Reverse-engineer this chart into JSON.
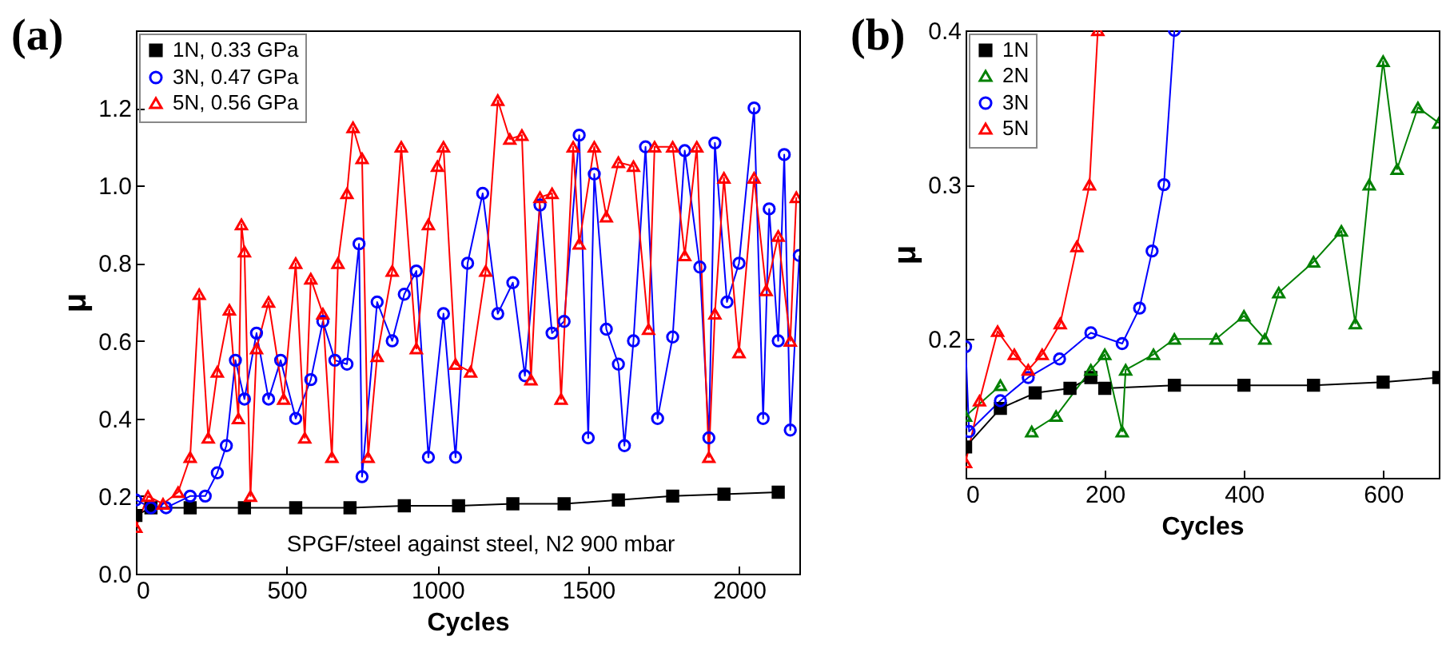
{
  "chart_data": [
    {
      "type": "line",
      "title": "(a)",
      "xlabel": "Cycles",
      "ylabel": "μ",
      "xlim": [
        0,
        2200
      ],
      "ylim": [
        0,
        1.4
      ],
      "xticks": [
        0,
        500,
        {
          "value": 1000,
          "label": "1000"
        },
        {
          "value": 1500,
          "label": "1500"
        },
        {
          "value": 2000,
          "label": "2000"
        }
      ],
      "yticks": [
        {
          "value": 0,
          "label": "0.0"
        },
        {
          "value": 0.2,
          "label": "0.2"
        },
        {
          "value": 0.4,
          "label": "0.4"
        },
        {
          "value": 0.6,
          "label": "0.6"
        },
        {
          "value": 0.8,
          "label": "0.8"
        },
        {
          "value": 1,
          "label": "1.0"
        },
        {
          "value": 1.2,
          "label": "1.2"
        }
      ],
      "grid": false,
      "legend": "top left",
      "annotations": [
        "SPGF/steel against steel, N2 900 mbar"
      ],
      "series": [
        {
          "name": "1N, 0.33 GPa",
          "color": "#000000",
          "marker": "square",
          "x": [
            0,
            50,
            180,
            360,
            530,
            710,
            890,
            1070,
            1250,
            1420,
            1600,
            1780,
            1950,
            2130
          ],
          "values": [
            0.15,
            0.17,
            0.17,
            0.17,
            0.17,
            0.17,
            0.175,
            0.175,
            0.18,
            0.18,
            0.19,
            0.2,
            0.205,
            0.21
          ]
        },
        {
          "name": "3N, 0.47 GPa",
          "color": "#0000ff",
          "marker": "circle",
          "x": [
            0,
            50,
            100,
            180,
            230,
            270,
            300,
            330,
            360,
            400,
            440,
            480,
            530,
            580,
            620,
            660,
            700,
            740,
            750,
            800,
            850,
            890,
            930,
            970,
            1020,
            1060,
            1100,
            1150,
            1200,
            1250,
            1290,
            1340,
            1380,
            1420,
            1470,
            1500,
            1520,
            1560,
            1600,
            1620,
            1650,
            1690,
            1730,
            1780,
            1820,
            1870,
            1900,
            1920,
            1960,
            2000,
            2050,
            2080,
            2100,
            2130,
            2150,
            2170,
            2200
          ],
          "values": [
            0.19,
            0.17,
            0.17,
            0.2,
            0.2,
            0.26,
            0.33,
            0.55,
            0.45,
            0.62,
            0.45,
            0.55,
            0.4,
            0.5,
            0.65,
            0.55,
            0.54,
            0.85,
            0.25,
            0.7,
            0.6,
            0.72,
            0.78,
            0.3,
            0.67,
            0.3,
            0.8,
            0.98,
            0.67,
            0.75,
            0.51,
            0.95,
            0.62,
            0.65,
            1.13,
            0.35,
            1.03,
            0.63,
            0.54,
            0.33,
            0.6,
            1.1,
            0.4,
            0.61,
            1.09,
            0.79,
            0.35,
            1.11,
            0.7,
            0.8,
            1.2,
            0.4,
            0.94,
            0.6,
            1.08,
            0.37,
            0.82
          ]
        },
        {
          "name": "5N, 0.56 GPa",
          "color": "#ff0000",
          "marker": "triangle",
          "x": [
            0,
            40,
            90,
            140,
            180,
            210,
            240,
            270,
            310,
            340,
            350,
            360,
            380,
            400,
            440,
            490,
            530,
            560,
            580,
            620,
            650,
            670,
            700,
            720,
            750,
            770,
            800,
            850,
            880,
            930,
            970,
            1000,
            1020,
            1060,
            1110,
            1160,
            1200,
            1240,
            1280,
            1310,
            1340,
            1380,
            1410,
            1450,
            1470,
            1520,
            1560,
            1600,
            1650,
            1700,
            1720,
            1780,
            1820,
            1860,
            1900,
            1920,
            1950,
            2000,
            2050,
            2090,
            2130,
            2170,
            2190
          ],
          "values": [
            0.12,
            0.2,
            0.18,
            0.21,
            0.3,
            0.72,
            0.35,
            0.52,
            0.68,
            0.4,
            0.9,
            0.83,
            0.2,
            0.58,
            0.7,
            0.45,
            0.8,
            0.35,
            0.76,
            0.67,
            0.3,
            0.8,
            0.98,
            1.15,
            1.07,
            0.3,
            0.56,
            0.78,
            1.1,
            0.58,
            0.9,
            1.05,
            1.1,
            0.54,
            0.52,
            0.78,
            1.22,
            1.12,
            1.13,
            0.5,
            0.97,
            0.98,
            0.45,
            1.1,
            0.85,
            1.1,
            0.92,
            1.06,
            1.05,
            0.63,
            1.1,
            1.1,
            0.82,
            1.1,
            0.3,
            0.67,
            1.02,
            0.57,
            1.02,
            0.73,
            0.87,
            0.6,
            0.97
          ]
        }
      ]
    },
    {
      "type": "line",
      "title": "(b)",
      "xlabel": "Cycles",
      "ylabel": "μ",
      "xlim": [
        0,
        680
      ],
      "ylim": [
        0.11,
        0.4
      ],
      "xticks": [
        0,
        200,
        400,
        600
      ],
      "yticks": [
        0.2,
        0.3,
        0.4
      ],
      "grid": false,
      "legend": "top left",
      "series": [
        {
          "name": "1N",
          "color": "#000000",
          "marker": "square",
          "x": [
            0,
            50,
            100,
            150,
            180,
            200,
            300,
            400,
            500,
            600,
            680
          ],
          "values": [
            0.13,
            0.155,
            0.165,
            0.168,
            0.175,
            0.168,
            0.17,
            0.17,
            0.17,
            0.172,
            0.175
          ]
        },
        {
          "name": "2N",
          "color": "#008000",
          "marker": "triangle",
          "x": [
            0,
            50,
            90,
            95,
            130,
            180,
            200,
            225,
            230,
            270,
            300,
            360,
            400,
            430,
            450,
            500,
            540,
            560,
            580,
            600,
            620,
            650,
            680
          ],
          "values": [
            0.15,
            0.17,
            null,
            0.14,
            0.15,
            0.18,
            0.19,
            0.14,
            0.18,
            0.19,
            0.2,
            0.2,
            0.215,
            0.2,
            0.23,
            0.25,
            0.27,
            0.21,
            0.3,
            0.38,
            0.31,
            0.35,
            0.34
          ]
        },
        {
          "name": "3N",
          "color": "#0000ff",
          "marker": "circle",
          "x": [
            0,
            5,
            50,
            90,
            135,
            180,
            225,
            250,
            268,
            285,
            300
          ],
          "values": [
            0.195,
            0.14,
            0.16,
            0.175,
            0.187,
            0.204,
            0.197,
            0.22,
            0.257,
            0.3,
            0.4
          ]
        },
        {
          "name": "5N",
          "color": "#ff0000",
          "marker": "triangle",
          "x": [
            0,
            20,
            46,
            70,
            90,
            110,
            136,
            160,
            178,
            190
          ],
          "values": [
            0.12,
            0.16,
            0.205,
            0.19,
            0.18,
            0.19,
            0.21,
            0.26,
            0.3,
            0.4
          ]
        }
      ]
    }
  ]
}
